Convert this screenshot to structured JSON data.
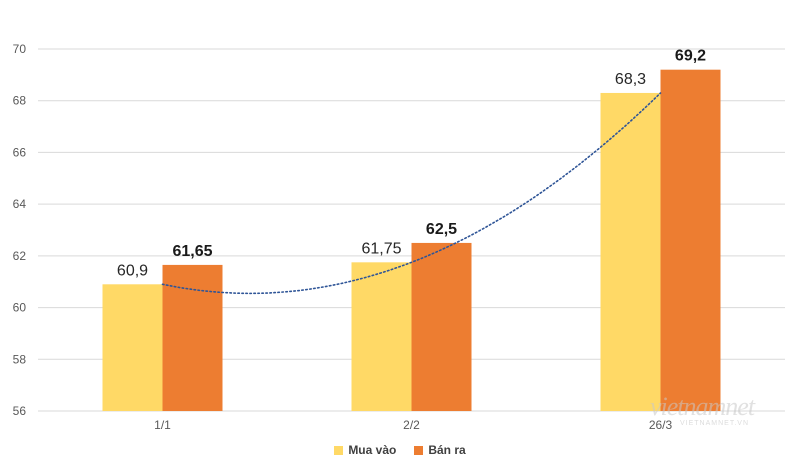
{
  "chart_data": {
    "type": "bar",
    "title": "",
    "xlabel": "",
    "ylabel": "",
    "ylim": [
      56,
      70
    ],
    "yticks": [
      56,
      58,
      60,
      62,
      64,
      66,
      68,
      70
    ],
    "grid": true,
    "categories": [
      "1/1",
      "2/2",
      "26/3"
    ],
    "series": [
      {
        "name": "Mua vào",
        "values": [
          60.9,
          61.75,
          68.3
        ],
        "labels": [
          "60,9",
          "61,75",
          "68,3"
        ],
        "color": "#FFD966"
      },
      {
        "name": "Bán ra",
        "values": [
          61.65,
          62.5,
          69.2
        ],
        "labels": [
          "61,65",
          "62,5",
          "69,2"
        ],
        "color": "#ED7D31"
      }
    ],
    "trendline": {
      "type": "polynomial",
      "series": "Mua vào",
      "color": "#2F5597",
      "style": "dotted"
    },
    "legend_position": "bottom"
  },
  "watermark": {
    "text": "vietnamnet",
    "subtext": "VIETNAMNET.VN"
  }
}
